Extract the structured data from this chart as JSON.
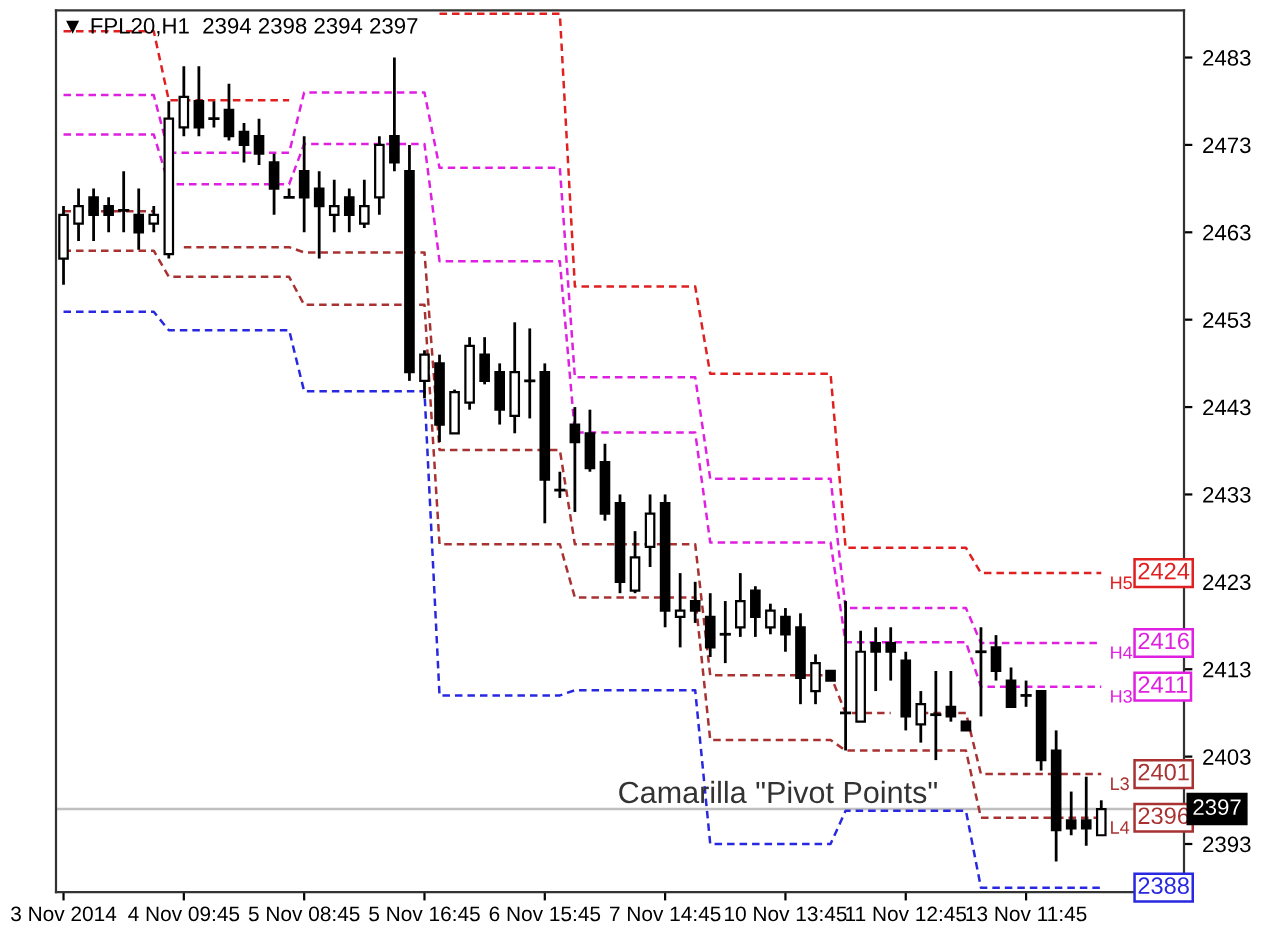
{
  "chart_data": {
    "type": "candlestick",
    "title": "▼ FPL20,H1  2394 2398 2394 2397",
    "annotations": [
      "Camarilla \"Pivot Points\""
    ],
    "categories": [
      "3 Nov 2014",
      null,
      null,
      null,
      null,
      null,
      null,
      null,
      "4 Nov 09:45",
      null,
      null,
      null,
      null,
      null,
      null,
      null,
      "5 Nov 08:45",
      null,
      null,
      null,
      null,
      null,
      null,
      null,
      "5 Nov 16:45",
      null,
      null,
      null,
      null,
      null,
      null,
      null,
      "6 Nov 15:45",
      null,
      null,
      null,
      null,
      null,
      null,
      null,
      "7 Nov 14:45",
      null,
      null,
      null,
      null,
      null,
      null,
      null,
      "10 Nov 13:45",
      null,
      null,
      null,
      null,
      null,
      null,
      null,
      "11 Nov 12:45",
      null,
      null,
      null,
      null,
      null,
      null,
      null,
      "13 Nov 11:45",
      null,
      null,
      null,
      null,
      null
    ],
    "ohlc": [
      [
        2460,
        2466,
        2457,
        2465
      ],
      [
        2464,
        2468,
        2462,
        2466
      ],
      [
        2467,
        2468,
        2462,
        2465
      ],
      [
        2466,
        2467,
        2463,
        2465
      ],
      [
        2465.5,
        2470,
        2463,
        2465.5
      ],
      [
        2465,
        2468,
        2461,
        2463
      ],
      [
        2464,
        2466,
        2463,
        2465
      ],
      [
        2460.5,
        2478,
        2460,
        2476
      ],
      [
        2475,
        2482,
        2474,
        2478.5
      ],
      [
        2478,
        2482,
        2474,
        2475
      ],
      [
        2476,
        2478,
        2475,
        2476
      ],
      [
        2477,
        2480,
        2473.5,
        2474
      ],
      [
        2474.5,
        2475.5,
        2471,
        2473
      ],
      [
        2474,
        2476,
        2470.7,
        2472
      ],
      [
        2471,
        2472,
        2465,
        2468
      ],
      [
        2467,
        2468,
        2467,
        2467
      ],
      [
        2470,
        2474,
        2463,
        2467
      ],
      [
        2468,
        2470,
        2460,
        2466
      ],
      [
        2465,
        2469,
        2463,
        2466
      ],
      [
        2467,
        2468,
        2463,
        2465
      ],
      [
        2464,
        2469,
        2463.5,
        2466
      ],
      [
        2467,
        2474,
        2465,
        2473
      ],
      [
        2474,
        2483,
        2470,
        2471
      ],
      [
        2470,
        2473,
        2446,
        2447
      ],
      [
        2446,
        2449.5,
        2444,
        2449
      ],
      [
        2448,
        2449,
        2439,
        2441
      ],
      [
        2440,
        2445,
        2440,
        2444.7
      ],
      [
        2443.5,
        2451,
        2442.7,
        2450
      ],
      [
        2449,
        2451,
        2445.6,
        2446
      ],
      [
        2447,
        2448,
        2441,
        2442.7
      ],
      [
        2442,
        2452.7,
        2440,
        2447
      ],
      [
        2446,
        2452,
        2441.7,
        2446
      ],
      [
        2447,
        2448,
        2429.7,
        2434.7
      ],
      [
        2433.5,
        2435.6,
        2432.6,
        2433.5
      ],
      [
        2441,
        2443,
        2431,
        2439
      ],
      [
        2440,
        2442.7,
        2435.6,
        2436
      ],
      [
        2436.7,
        2438.8,
        2430,
        2430.8
      ],
      [
        2432,
        2433,
        2421.7,
        2423
      ],
      [
        2422,
        2428.8,
        2421.7,
        2425.8
      ],
      [
        2427,
        2433,
        2424.7,
        2430.8
      ],
      [
        2432,
        2433,
        2417.8,
        2419.7
      ],
      [
        2419,
        2424,
        2415.5,
        2419.7
      ],
      [
        2420.8,
        2423,
        2418.3,
        2419.7
      ],
      [
        2419,
        2421.7,
        2414.4,
        2415.5
      ],
      [
        2417,
        2420.8,
        2413.7,
        2417
      ],
      [
        2417.8,
        2424,
        2416.7,
        2420.8
      ],
      [
        2422,
        2422.5,
        2416.7,
        2419
      ],
      [
        2417.8,
        2420.5,
        2417,
        2419.7
      ],
      [
        2419,
        2420,
        2415,
        2417
      ],
      [
        2417.8,
        2419.4,
        2409,
        2412
      ],
      [
        2410.5,
        2414.7,
        2409,
        2413.7
      ],
      [
        2412.8,
        2412.8,
        2411.7,
        2411.7
      ],
      [
        2408,
        2420.8,
        2403.7,
        2408
      ],
      [
        2407,
        2417.4,
        2407,
        2415
      ],
      [
        2416,
        2417.8,
        2410.5,
        2415
      ],
      [
        2416,
        2417.8,
        2411.7,
        2415
      ],
      [
        2414,
        2415,
        2406,
        2407.6
      ],
      [
        2406.7,
        2410.5,
        2404.6,
        2409
      ],
      [
        2407.8,
        2412.8,
        2402.6,
        2407.8
      ],
      [
        2408.7,
        2412.8,
        2407,
        2407.6
      ],
      [
        2407,
        2407,
        2406,
        2406
      ],
      [
        2415,
        2417.8,
        2407.6,
        2415
      ],
      [
        2415.5,
        2416.9,
        2411.7,
        2412.8
      ],
      [
        2411.7,
        2413.2,
        2408.7,
        2408.7
      ],
      [
        2410,
        2411.7,
        2408.7,
        2410
      ],
      [
        2410.5,
        2410.5,
        2401.4,
        2402.6
      ],
      [
        2403.7,
        2406,
        2391,
        2394.6
      ],
      [
        2395.7,
        2399,
        2394,
        2394.8
      ],
      [
        2395.7,
        2400.7,
        2392.8,
        2394.8
      ],
      [
        2394,
        2398,
        2394,
        2397
      ]
    ],
    "color": "#000000",
    "series": [
      {
        "name": "H5",
        "type": "line",
        "color": "#e02020",
        "line_style": "dashed",
        "values": [
          2486,
          2486,
          2486,
          2486,
          2486,
          2486,
          2486,
          2478.1,
          2478.1,
          2478.1,
          2478.1,
          2478.1,
          2478.1,
          2478.1,
          2478.1,
          2478.1,
          null,
          null,
          null,
          null,
          null,
          null,
          null,
          null,
          null,
          2488,
          2488,
          2488,
          2488,
          2488,
          2488,
          2488,
          2488,
          2488,
          2456.8,
          2456.8,
          2456.8,
          2456.8,
          2456.8,
          2456.8,
          2456.8,
          2456.8,
          2456.8,
          2446.8,
          2446.8,
          2446.8,
          2446.8,
          2446.8,
          2446.8,
          2446.8,
          2446.8,
          2446.8,
          2426.9,
          2426.9,
          2426.9,
          2426.9,
          2426.9,
          2426.9,
          2426.9,
          2426.9,
          2426.9,
          2424,
          2424,
          2424,
          2424,
          2424,
          2424,
          2424,
          2424,
          2424
        ],
        "value_labels": [
          null,
          null,
          null,
          null,
          null,
          null,
          null,
          null,
          null,
          null,
          null,
          null,
          null,
          null,
          null,
          null,
          null,
          null,
          null,
          null,
          null,
          null,
          null,
          null,
          null,
          null,
          null,
          null,
          null,
          null,
          null,
          null,
          null,
          null,
          null,
          null,
          null,
          null,
          null,
          null,
          null,
          null,
          null,
          null,
          null,
          null,
          null,
          null,
          null,
          null,
          null,
          null,
          null,
          null,
          null,
          null,
          null,
          null,
          null,
          null,
          null,
          null,
          null,
          null,
          null,
          null,
          null,
          null,
          null,
          "2424"
        ]
      },
      {
        "name": "H4",
        "type": "line",
        "color": "#e020e0",
        "line_style": "dashed",
        "values": [
          2478.7,
          2478.7,
          2478.7,
          2478.7,
          2478.7,
          2478.7,
          2478.7,
          2472.1,
          2472.1,
          2472.1,
          2472.1,
          2472.1,
          2472.1,
          2472.1,
          2472.1,
          2472.1,
          2479,
          2479,
          2479,
          2479,
          2479,
          2479,
          2479,
          2479,
          2479,
          2470.4,
          2470.4,
          2470.4,
          2470.4,
          2470.4,
          2470.4,
          2470.4,
          2470.4,
          2470.4,
          2446.4,
          2446.4,
          2446.4,
          2446.4,
          2446.4,
          2446.4,
          2446.4,
          2446.4,
          2446.4,
          2434.8,
          2434.8,
          2434.8,
          2434.8,
          2434.8,
          2434.8,
          2434.8,
          2434.8,
          2434.8,
          2420,
          2420,
          2420,
          2420,
          2420,
          2420,
          2420,
          2420,
          2420,
          2416,
          2416,
          2416,
          2416,
          2416,
          2416,
          2416,
          2416,
          2416
        ],
        "value_labels": [
          null,
          null,
          null,
          null,
          null,
          null,
          null,
          null,
          null,
          null,
          null,
          null,
          null,
          null,
          null,
          null,
          null,
          null,
          null,
          null,
          null,
          null,
          null,
          null,
          null,
          null,
          null,
          null,
          null,
          null,
          null,
          null,
          null,
          null,
          null,
          null,
          null,
          null,
          null,
          null,
          null,
          null,
          null,
          null,
          null,
          null,
          null,
          null,
          null,
          null,
          null,
          null,
          null,
          null,
          null,
          null,
          null,
          null,
          null,
          null,
          null,
          null,
          null,
          null,
          null,
          null,
          null,
          null,
          null,
          "2416"
        ]
      },
      {
        "name": "H3",
        "type": "line",
        "color": "#e020e0",
        "line_style": "dashed",
        "values": [
          2474.2,
          2474.2,
          2474.2,
          2474.2,
          2474.2,
          2474.2,
          2474.2,
          2468.5,
          2468.5,
          2468.5,
          2468.5,
          2468.5,
          2468.5,
          2468.5,
          2468.5,
          2468.5,
          2473.1,
          2473.1,
          2473.1,
          2473.1,
          2473.1,
          2473.1,
          2473.1,
          2473.1,
          2473.1,
          2459.7,
          2459.7,
          2459.7,
          2459.7,
          2459.7,
          2459.7,
          2459.7,
          2459.7,
          2459.7,
          2440.1,
          2440.1,
          2440.1,
          2440.1,
          2440.1,
          2440.1,
          2440.1,
          2440.1,
          2440.1,
          2427.5,
          2427.5,
          2427.5,
          2427.5,
          2427.5,
          2427.5,
          2427.5,
          2427.5,
          2427.5,
          2416.1,
          2416.1,
          2416.1,
          2416.1,
          2416.1,
          2416.1,
          2416.1,
          2416.1,
          2416.1,
          2411,
          2411,
          2411,
          2411,
          2411,
          2411,
          2411,
          2411,
          2411
        ],
        "value_labels": [
          null,
          null,
          null,
          null,
          null,
          null,
          null,
          null,
          null,
          null,
          null,
          null,
          null,
          null,
          null,
          null,
          null,
          null,
          null,
          null,
          null,
          null,
          null,
          null,
          null,
          null,
          null,
          null,
          null,
          null,
          null,
          null,
          null,
          null,
          null,
          null,
          null,
          null,
          null,
          null,
          null,
          null,
          null,
          null,
          null,
          null,
          null,
          null,
          null,
          null,
          null,
          null,
          null,
          null,
          null,
          null,
          null,
          null,
          null,
          null,
          null,
          null,
          null,
          null,
          null,
          null,
          null,
          null,
          null,
          "2411"
        ]
      },
      {
        "name": "L3",
        "type": "line",
        "color": "#a83232",
        "line_style": "dashed",
        "values": [
          2465.4,
          2465.4,
          2465.4,
          2465.4,
          2465.4,
          2465.4,
          2465.4,
          null,
          2461.3,
          2461.3,
          2461.3,
          2461.3,
          2461.3,
          2461.3,
          2461.3,
          2461.3,
          2460.7,
          2460.7,
          2460.7,
          2460.7,
          2460.7,
          2460.7,
          2460.7,
          2460.7,
          2460.7,
          2438.1,
          2438.1,
          2438.1,
          2438.1,
          2438.1,
          2438.1,
          2438.1,
          2438.1,
          2438.1,
          2427.3,
          2427.3,
          2427.3,
          2427.3,
          2427.3,
          2427.3,
          2427.3,
          2427.3,
          2427.3,
          2412.3,
          2412.3,
          2412.3,
          2412.3,
          2412.3,
          2412.3,
          2412.3,
          2412.3,
          2412.3,
          2408,
          2408,
          2408,
          2408,
          null,
          2408,
          2408,
          2408,
          2408,
          2401,
          2401,
          2401,
          2401,
          2401,
          2401,
          2401,
          2401,
          2401
        ],
        "value_labels": [
          null,
          null,
          null,
          null,
          null,
          null,
          null,
          null,
          null,
          null,
          null,
          null,
          null,
          null,
          null,
          null,
          null,
          null,
          null,
          null,
          null,
          null,
          null,
          null,
          null,
          null,
          null,
          null,
          null,
          null,
          null,
          null,
          null,
          null,
          null,
          null,
          null,
          null,
          null,
          null,
          null,
          null,
          null,
          null,
          null,
          null,
          null,
          null,
          null,
          null,
          null,
          null,
          null,
          null,
          null,
          null,
          null,
          null,
          null,
          null,
          null,
          null,
          null,
          null,
          null,
          null,
          null,
          null,
          null,
          "2401"
        ]
      },
      {
        "name": "L4",
        "type": "line",
        "color": "#a83232",
        "line_style": "dashed",
        "values": [
          2460.9,
          2460.9,
          2460.9,
          2460.9,
          2460.9,
          2460.9,
          2460.9,
          2457.9,
          2457.9,
          2457.9,
          2457.9,
          2457.9,
          2457.9,
          2457.9,
          2457.9,
          2457.9,
          2454.7,
          2454.7,
          2454.7,
          2454.7,
          2454.7,
          2454.7,
          2454.7,
          2454.7,
          2454.7,
          2427.3,
          2427.3,
          2427.3,
          2427.3,
          2427.3,
          2427.3,
          2427.3,
          2427.3,
          2427.3,
          2421.2,
          2421.2,
          2421.2,
          2421.2,
          2421.2,
          2421.2,
          2421.2,
          2421.2,
          2421.2,
          2404.9,
          2404.9,
          2404.9,
          2404.9,
          2404.9,
          2404.9,
          2404.9,
          2404.9,
          2404.9,
          2403.7,
          2403.7,
          2403.7,
          2403.7,
          2403.7,
          2403.7,
          2403.7,
          2403.7,
          2403.7,
          2396,
          2396,
          2396,
          2396,
          2396,
          2396,
          2396,
          2396,
          2396
        ],
        "value_labels": [
          null,
          null,
          null,
          null,
          null,
          null,
          null,
          null,
          null,
          null,
          null,
          null,
          null,
          null,
          null,
          null,
          null,
          null,
          null,
          null,
          null,
          null,
          null,
          null,
          null,
          null,
          null,
          null,
          null,
          null,
          null,
          null,
          null,
          null,
          null,
          null,
          null,
          null,
          null,
          null,
          null,
          null,
          null,
          null,
          null,
          null,
          null,
          null,
          null,
          null,
          null,
          null,
          null,
          null,
          null,
          null,
          null,
          null,
          null,
          null,
          null,
          null,
          null,
          null,
          null,
          null,
          null,
          null,
          null,
          "2396"
        ]
      },
      {
        "type": "line",
        "color": "#2828e0",
        "line_style": "dashed",
        "values": [
          2453.9,
          2453.9,
          2453.9,
          2453.9,
          2453.9,
          2453.9,
          2453.9,
          2451.8,
          2451.8,
          2451.8,
          2451.8,
          2451.8,
          2451.8,
          2451.8,
          2451.8,
          2451.8,
          2444.8,
          2444.8,
          2444.8,
          2444.8,
          2444.8,
          2444.8,
          2444.8,
          2444.8,
          2444.8,
          2410,
          2410,
          2410,
          2410,
          2410,
          2410,
          2410,
          2410,
          2410,
          2410.6,
          2410.6,
          2410.6,
          2410.6,
          2410.6,
          2410.6,
          2410.6,
          2410.6,
          2410.6,
          2393,
          2393,
          2393,
          2393,
          2393,
          2393,
          2393,
          2393,
          2393,
          2396.8,
          2396.8,
          2396.8,
          2396.8,
          2396.8,
          2396.8,
          2396.8,
          2396.8,
          2396.8,
          2388,
          2388,
          2388,
          2388,
          2388,
          2388,
          2388,
          2388,
          2388
        ],
        "value_labels": [
          null,
          null,
          null,
          null,
          null,
          null,
          null,
          null,
          null,
          null,
          null,
          null,
          null,
          null,
          null,
          null,
          null,
          null,
          null,
          null,
          null,
          null,
          null,
          null,
          null,
          null,
          null,
          null,
          null,
          null,
          null,
          null,
          null,
          null,
          null,
          null,
          null,
          null,
          null,
          null,
          null,
          null,
          null,
          null,
          null,
          null,
          null,
          null,
          null,
          null,
          null,
          null,
          null,
          null,
          null,
          null,
          null,
          null,
          null,
          null,
          null,
          null,
          null,
          null,
          null,
          null,
          null,
          null,
          null,
          "2388"
        ]
      }
    ],
    "ref_lines": [
      {
        "axis": "y",
        "value": 2397,
        "label": "2397",
        "color": "#c0c0c0"
      }
    ],
    "legend": "right",
    "ylim": [
      2387.5,
      2488.4
    ],
    "yticks": [
      2393,
      2403,
      2413,
      2423,
      2433,
      2443,
      2453,
      2463,
      2473,
      2483
    ]
  }
}
